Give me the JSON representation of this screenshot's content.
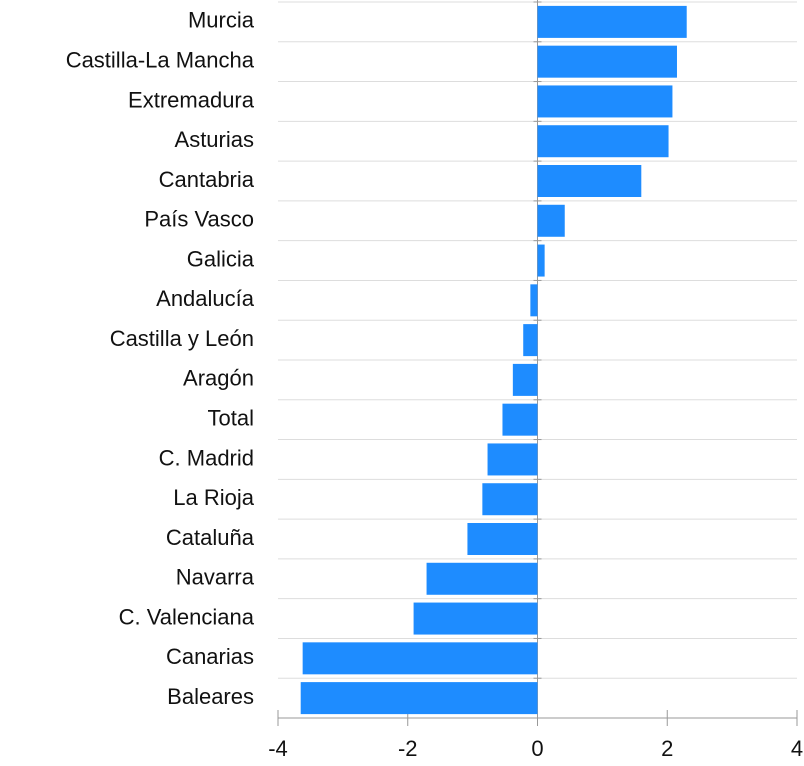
{
  "chart_data": {
    "type": "barh",
    "categories": [
      "Murcia",
      "Castilla-La Mancha",
      "Extremadura",
      "Asturias",
      "Cantabria",
      "País Vasco",
      "Galicia",
      "Andalucía",
      "Castilla y León",
      "Aragón",
      "Total",
      "C. Madrid",
      "La Rioja",
      "Cataluña",
      "Navarra",
      "C. Valenciana",
      "Canarias",
      "Baleares"
    ],
    "values": [
      2.3,
      2.15,
      2.08,
      2.02,
      1.6,
      0.42,
      0.11,
      -0.11,
      -0.22,
      -0.38,
      -0.54,
      -0.77,
      -0.85,
      -1.08,
      -1.71,
      -1.91,
      -3.62,
      -3.65
    ],
    "color": "#1e8cff",
    "xlim": [
      -4,
      4
    ],
    "xticks": [
      -4,
      -2,
      0,
      2,
      4
    ]
  }
}
